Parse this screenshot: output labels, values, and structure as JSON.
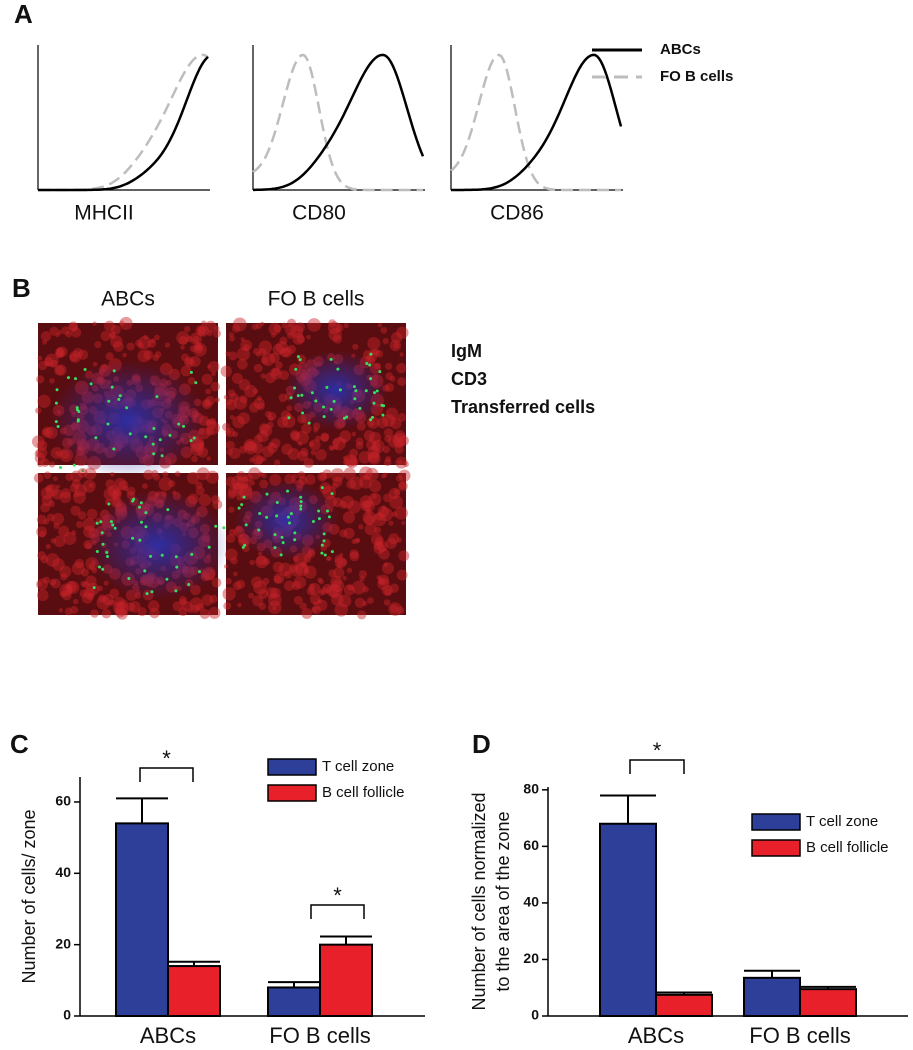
{
  "panel_labels": [
    "A",
    "B",
    "C",
    "D"
  ],
  "panel_a": {
    "xlabels": [
      "MHCII",
      "CD80",
      "CD86"
    ],
    "legend": [
      {
        "name": "ABCs",
        "color": "#000000"
      },
      {
        "name": "FO B cells",
        "color": "#bdbdbd"
      }
    ]
  },
  "panel_b": {
    "columns": [
      "ABCs",
      "FO B cells"
    ],
    "stains": [
      {
        "name": "IgM",
        "color": "#e0393b"
      },
      {
        "name": "CD3",
        "color": "#2a7fc1"
      },
      {
        "name": "Transferred cells",
        "color": "#1aa04a"
      }
    ]
  },
  "chart_data": [
    {
      "type": "bar",
      "ylabel": [
        "Number of cells/ zone"
      ],
      "categories": [
        "ABCs",
        "FO B cells"
      ],
      "series": [
        {
          "name": "T cell zone",
          "color": "#2e3f9a",
          "values": [
            54,
            8
          ],
          "errors": [
            7,
            1.5
          ]
        },
        {
          "name": "B cell follicle",
          "color": "#e8202a",
          "values": [
            14,
            20
          ],
          "errors": [
            1.2,
            2.3
          ]
        }
      ],
      "ylim": [
        0,
        67
      ],
      "yticks": [
        0,
        20,
        40,
        60
      ],
      "annotations": [
        "*",
        "*"
      ]
    },
    {
      "type": "bar",
      "ylabel": [
        "Number of cells normalized",
        "to the area of the zone"
      ],
      "categories": [
        "ABCs",
        "FO B cells"
      ],
      "series": [
        {
          "name": "T cell zone",
          "color": "#2e3f9a",
          "values": [
            68,
            13.5
          ],
          "errors": [
            10,
            2.5
          ]
        },
        {
          "name": "B cell follicle",
          "color": "#e8202a",
          "values": [
            7.5,
            9.5
          ],
          "errors": [
            0.8,
            0.8
          ]
        }
      ],
      "ylim": [
        0,
        81
      ],
      "yticks": [
        0,
        20,
        40,
        60,
        80
      ],
      "annotations": [
        "*"
      ]
    }
  ]
}
